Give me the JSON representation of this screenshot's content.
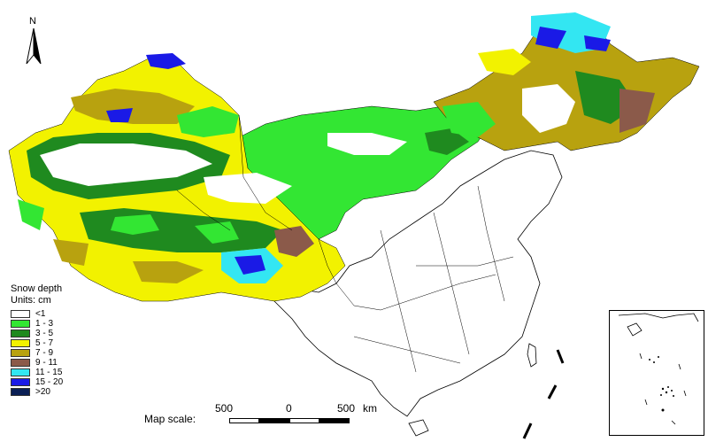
{
  "north": {
    "label": "N"
  },
  "legend": {
    "title": "Snow depth",
    "units": "Units: cm",
    "items": [
      {
        "label": "<1",
        "color": "#ffffff"
      },
      {
        "label": "1 - 3",
        "color": "#33e633"
      },
      {
        "label": "3 - 5",
        "color": "#1f8a1f"
      },
      {
        "label": "5 - 7",
        "color": "#f2f200"
      },
      {
        "label": "7 - 9",
        "color": "#b8a20f"
      },
      {
        "label": "9 - 11",
        "color": "#8b5a4a"
      },
      {
        "label": "11 - 15",
        "color": "#33e6f2"
      },
      {
        "label": "15 - 20",
        "color": "#1a1ae6"
      },
      {
        "label": ">20",
        "color": "#0a1f55"
      }
    ]
  },
  "scale": {
    "title": "Map scale:",
    "left_label": "500",
    "mid_label": "0",
    "right_label": "500",
    "unit": "km"
  }
}
